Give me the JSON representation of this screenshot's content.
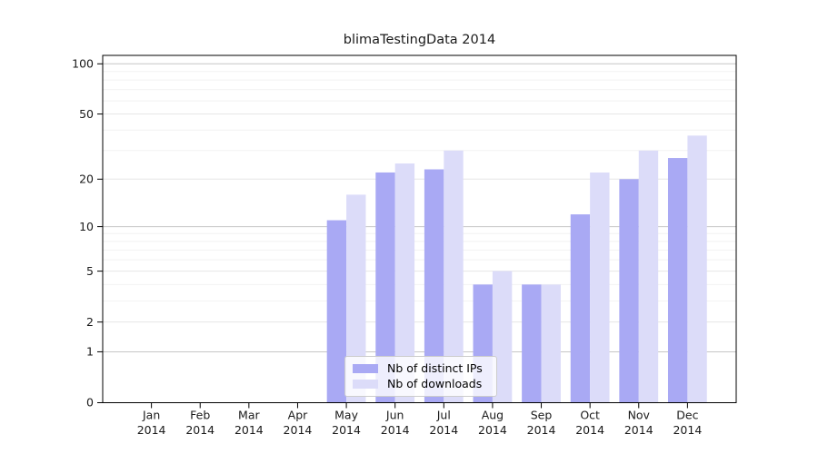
{
  "chart_data": {
    "type": "bar",
    "title": "blimaTestingData 2014",
    "x_months": [
      "Jan",
      "Feb",
      "Mar",
      "Apr",
      "May",
      "Jun",
      "Jul",
      "Aug",
      "Sep",
      "Oct",
      "Nov",
      "Dec"
    ],
    "x_year_label": "2014",
    "categories": [
      "Jan 2014",
      "Feb 2014",
      "Mar 2014",
      "Apr 2014",
      "May 2014",
      "Jun 2014",
      "Jul 2014",
      "Aug 2014",
      "Sep 2014",
      "Oct 2014",
      "Nov 2014",
      "Dec 2014"
    ],
    "series": [
      {
        "name": "Nb of distinct IPs",
        "color": "#a9a9f4",
        "values": [
          0,
          0,
          0,
          0,
          11,
          22,
          23,
          4,
          4,
          12,
          20,
          27
        ]
      },
      {
        "name": "Nb of downloads",
        "color": "#dcdcf9",
        "values": [
          0,
          0,
          0,
          0,
          16,
          25,
          30,
          5,
          4,
          22,
          30,
          37
        ]
      }
    ],
    "y_axis": {
      "scale": "log10(value+1), zero at baseline",
      "tick_values": [
        0,
        1,
        2,
        5,
        10,
        20,
        50,
        100
      ],
      "tick_labels": [
        "0",
        "1",
        "2",
        "5",
        "10",
        "20",
        "50",
        "100"
      ],
      "minor_tick_values": [
        3,
        4,
        6,
        7,
        8,
        9,
        30,
        40,
        60,
        70,
        80,
        90
      ],
      "range": [
        0,
        112
      ]
    },
    "grid": "horizontal only",
    "legend": {
      "position": "lower-center",
      "items": [
        "Nb of distinct IPs",
        "Nb of downloads"
      ]
    }
  },
  "colors": {
    "bar_series_1": "#a9a9f4",
    "bar_series_2": "#dcdcf9",
    "grid_decade": "#c6c6c6",
    "grid_major": "#e6e6e6",
    "grid_minor": "#f2f2f2",
    "axis": "#000000",
    "text": "#1a1a1a",
    "legend_border": "#cccccc",
    "legend_bg": "rgba(255,255,255,0.8)"
  }
}
